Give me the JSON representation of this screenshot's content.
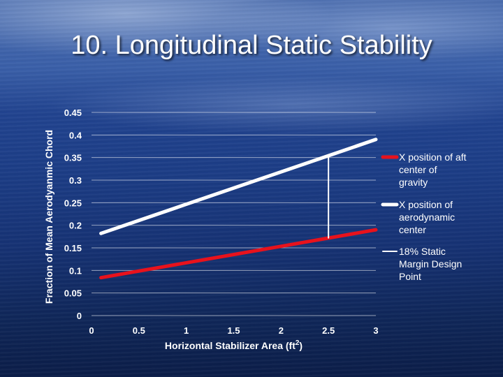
{
  "slide": {
    "title": "10. Longitudinal Static Stability"
  },
  "chart_data": {
    "type": "line",
    "title": "",
    "xlabel": "Horizontal Stabilizer Area (ft²)",
    "xlabel_base": "Horizontal Stabilizer Area (ft",
    "xlabel_sup": "2",
    "xlabel_close": ")",
    "ylabel": "Fraction of Mean Aerodyanmic Chord",
    "xlim": [
      0,
      3
    ],
    "ylim": [
      0,
      0.45
    ],
    "xticks": [
      0,
      0.5,
      1,
      1.5,
      2,
      2.5,
      3
    ],
    "xtick_labels": [
      "0",
      "0.5",
      "1",
      "1.5",
      "2",
      "2.5",
      "3"
    ],
    "yticks": [
      0,
      0.05,
      0.1,
      0.15,
      0.2,
      0.25,
      0.3,
      0.35,
      0.4,
      0.45
    ],
    "ytick_labels": [
      "0",
      "0.05",
      "0.1",
      "0.15",
      "0.2",
      "0.25",
      "0.3",
      "0.35",
      "0.4",
      "0.45"
    ],
    "grid": true,
    "legend_position": "right",
    "series": [
      {
        "name": "X position of aft center of gravity",
        "legend_lines": [
          "X position of aft",
          "center of",
          "gravity"
        ],
        "color": "#e8121c",
        "x": [
          0.1,
          3
        ],
        "y": [
          0.084,
          0.19
        ]
      },
      {
        "name": "X position of aerodynamic center",
        "legend_lines": [
          "X position of",
          "aerodynamic",
          "center"
        ],
        "color": "#ffffff",
        "x": [
          0.1,
          3
        ],
        "y": [
          0.182,
          0.39
        ]
      },
      {
        "name": "18% Static Margin Design Point",
        "legend_lines": [
          "18% Static",
          "Margin Design",
          "Point"
        ],
        "color": "#ffffff",
        "x": [
          2.5,
          2.5
        ],
        "y": [
          0.172,
          0.354
        ]
      }
    ]
  }
}
